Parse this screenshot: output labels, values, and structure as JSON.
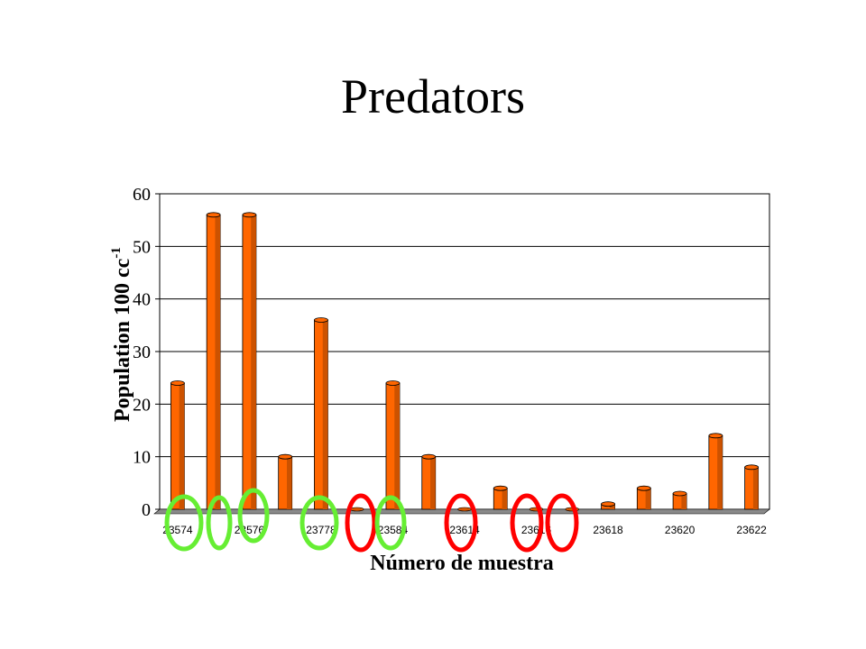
{
  "slide": {
    "title": "Predators"
  },
  "chart_data": {
    "type": "bar",
    "xlabel": "Número de muestra",
    "ylabel": "Population 100 cc",
    "ylabel_superscript": "-1",
    "ylim": [
      0,
      60
    ],
    "yticks": [
      0,
      10,
      20,
      30,
      40,
      50,
      60
    ],
    "grid": "horizontal",
    "legend": "none",
    "bar_color": "#ff6600",
    "categories": [
      "23574",
      "",
      "23576",
      "",
      "23778",
      "",
      "23584",
      "",
      "23614",
      "",
      "23616",
      "",
      "23618",
      "",
      "23620",
      "",
      "23622"
    ],
    "values": [
      24,
      56,
      56,
      10,
      36,
      0,
      24,
      10,
      0,
      4,
      0,
      0,
      1,
      4,
      3,
      14,
      8
    ],
    "shown_tick_labels": [
      "23574",
      "23576",
      "23778",
      "23584",
      "23614",
      "23616",
      "23618",
      "23620",
      "23622"
    ],
    "annotations": [
      {
        "shape": "ellipse",
        "color": "#66ee33",
        "near_category": "23574"
      },
      {
        "shape": "ellipse",
        "color": "#66ee33",
        "near_category": "23575"
      },
      {
        "shape": "ellipse",
        "color": "#66ee33",
        "near_category": "23576"
      },
      {
        "shape": "ellipse",
        "color": "#66ee33",
        "near_category": "23778"
      },
      {
        "shape": "ellipse",
        "color": "#ff0000",
        "near_category": "23779"
      },
      {
        "shape": "ellipse",
        "color": "#66ee33",
        "near_category": "23584"
      },
      {
        "shape": "ellipse",
        "color": "#ff0000",
        "near_category": "23614"
      },
      {
        "shape": "ellipse",
        "color": "#ff0000",
        "near_category": "23616"
      },
      {
        "shape": "ellipse",
        "color": "#ff0000",
        "near_category": "23617"
      }
    ]
  }
}
